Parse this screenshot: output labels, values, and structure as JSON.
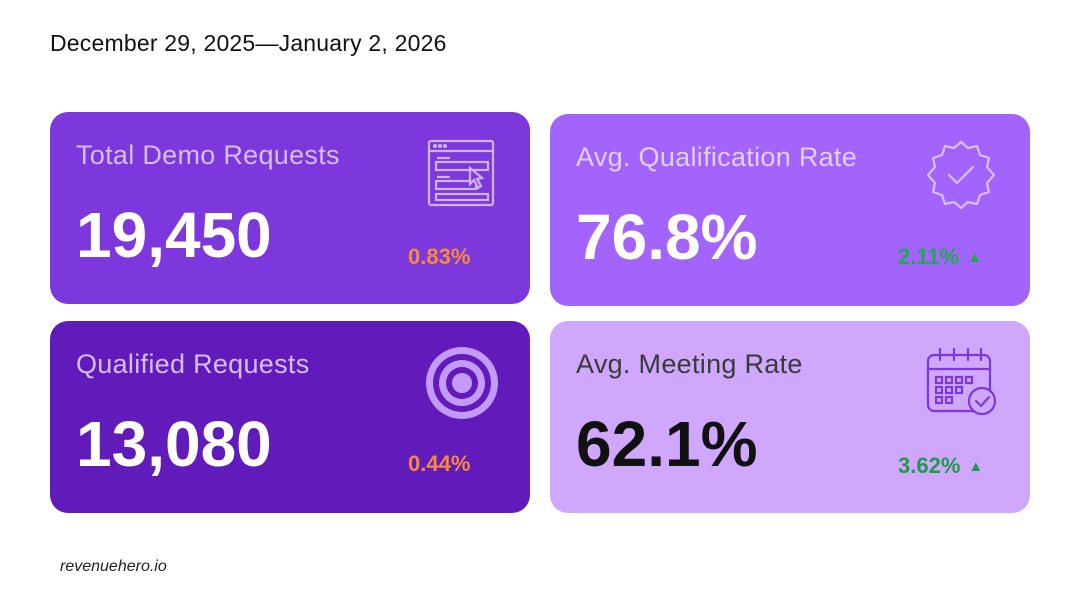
{
  "date_range": "December 29, 2025—January 2, 2026",
  "cards": [
    {
      "label": "Total Demo Requests",
      "value": "19,450",
      "change": "0.83%",
      "change_color": "#F7893B",
      "trend": "none",
      "background": "#7C38DD",
      "icon": "form-cursor-icon"
    },
    {
      "label": "Avg. Qualification Rate",
      "value": "76.8%",
      "change": "2.11%",
      "change_color": "#1DAA4E",
      "trend": "up",
      "background": "#A264FD",
      "icon": "verified-badge-icon"
    },
    {
      "label": "Qualified Requests",
      "value": "13,080",
      "change": "0.44%",
      "change_color": "#F7893B",
      "trend": "none",
      "background": "#621BBB",
      "icon": "target-icon"
    },
    {
      "label": "Avg. Meeting Rate",
      "value": "62.1%",
      "change": "3.62%",
      "change_color": "#1D9A4A",
      "trend": "up",
      "background": "#CFA7FD",
      "icon": "calendar-check-icon"
    }
  ],
  "footer": "revenuehero.io"
}
